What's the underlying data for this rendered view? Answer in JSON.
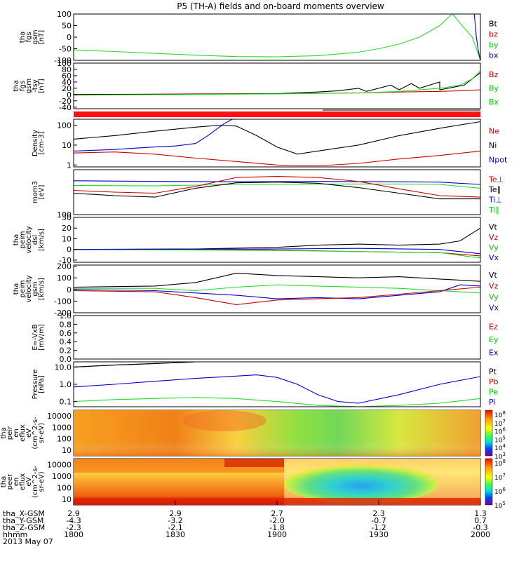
{
  "title": "P5 (TH-A) fields and on-board moments overview",
  "chart_data": [
    {
      "id": "panel1",
      "type": "line",
      "ylabel": [
        "tha",
        "fgs",
        "gsm",
        "[nT]"
      ],
      "ylim": [
        -100,
        100
      ],
      "ticks": [
        "100",
        "50",
        "0",
        "-50",
        "-100"
      ],
      "tickvals": [
        100,
        50,
        0,
        -50,
        -100
      ],
      "legend": [
        {
          "name": "Bt",
          "color": "#000000"
        },
        {
          "name": "bz",
          "color": "#cc0000"
        },
        {
          "name": "by",
          "color": "#00cc00"
        },
        {
          "name": "bx",
          "color": "#0000cc"
        }
      ],
      "series": [
        {
          "name": "by",
          "color": "#22dd22",
          "x": [
            0,
            0.1,
            0.2,
            0.3,
            0.4,
            0.5,
            0.6,
            0.7,
            0.75,
            0.8,
            0.85,
            0.9,
            0.93
          ],
          "y": [
            -55,
            -62,
            -70,
            -78,
            -84,
            -85,
            -80,
            -65,
            -50,
            -30,
            0,
            50,
            100
          ]
        },
        {
          "name": "by",
          "color": "#22dd22",
          "x": [
            0.932,
            0.95,
            0.98,
            1.0
          ],
          "y": [
            100,
            60,
            0,
            -100
          ]
        },
        {
          "name": "bx",
          "color": "#0000cc",
          "x": [
            0.985,
            0.99,
            0.995,
            1.0
          ],
          "y": [
            100,
            0,
            -60,
            -100
          ]
        }
      ]
    },
    {
      "id": "panel2",
      "type": "line",
      "ylabel": [
        "tha",
        "fgs",
        "gsm",
        "-tsy",
        "[nT]"
      ],
      "ylim": [
        -45,
        100
      ],
      "ticks": [
        "100",
        "80",
        "60",
        "40",
        "20",
        "0",
        "-20",
        "-40"
      ],
      "tickvals": [
        100,
        80,
        60,
        40,
        20,
        0,
        -20,
        -40
      ],
      "legend": [
        {
          "name": "Bz",
          "color": "#cc0000"
        },
        {
          "name": "By",
          "color": "#00cc00"
        },
        {
          "name": "Bx",
          "color": "#00cc00"
        }
      ],
      "series": [
        {
          "name": "Bz",
          "color": "#cc0000",
          "x": [
            0,
            0.3,
            0.5,
            0.7,
            0.8,
            0.9,
            0.95,
            1.0
          ],
          "y": [
            0,
            2,
            3,
            5,
            8,
            10,
            12,
            15
          ]
        },
        {
          "name": "Bt",
          "color": "#000000",
          "x": [
            0,
            0.3,
            0.5,
            0.6,
            0.65,
            0.7,
            0.72,
            0.78,
            0.8,
            0.83,
            0.85,
            0.9,
            0.9,
            0.92,
            0.96,
            0.98,
            1.0
          ],
          "y": [
            0,
            1,
            3,
            8,
            12,
            20,
            10,
            30,
            15,
            35,
            20,
            40,
            15,
            20,
            30,
            50,
            70
          ]
        },
        {
          "name": "By",
          "color": "#22dd22",
          "x": [
            0,
            0.5,
            0.7,
            0.8,
            0.9,
            0.95,
            0.98,
            1.0
          ],
          "y": [
            -2,
            2,
            5,
            10,
            20,
            30,
            50,
            75
          ]
        }
      ]
    },
    {
      "id": "panel4",
      "type": "line",
      "ylabel": [
        "Density",
        "[cm-3]"
      ],
      "ylim": [
        0.8,
        200
      ],
      "log": true,
      "ticks": [
        "100",
        "10",
        "1"
      ],
      "tickvals": [
        100,
        10,
        1
      ],
      "legend": [
        {
          "name": "Ne",
          "color": "#cc0000"
        },
        {
          "name": "Ni",
          "color": "#000000"
        },
        {
          "name": "Npot",
          "color": "#0000cc"
        }
      ],
      "series": [
        {
          "name": "Ni",
          "color": "#000000",
          "x": [
            0,
            0.1,
            0.2,
            0.3,
            0.36,
            0.4,
            0.45,
            0.5,
            0.55,
            0.6,
            0.7,
            0.8,
            0.9,
            1.0
          ],
          "y": [
            20,
            30,
            50,
            80,
            100,
            90,
            30,
            8,
            3.5,
            5,
            10,
            30,
            70,
            150
          ]
        },
        {
          "name": "Npot",
          "color": "#0000cc",
          "x": [
            0,
            0.05,
            0.1,
            0.15,
            0.2,
            0.25,
            0.3,
            0.33,
            0.35,
            0.37,
            0.39
          ],
          "y": [
            5,
            5.5,
            6,
            7,
            8,
            9,
            12,
            30,
            60,
            120,
            200
          ]
        },
        {
          "name": "Ne",
          "color": "#cc0000",
          "x": [
            0,
            0.1,
            0.2,
            0.3,
            0.4,
            0.5,
            0.55,
            0.6,
            0.7,
            0.8,
            0.9,
            1.0
          ],
          "y": [
            4,
            4.5,
            3.5,
            2.2,
            1.5,
            1.0,
            0.9,
            0.9,
            1.2,
            2,
            3,
            5
          ]
        }
      ]
    },
    {
      "id": "panel5",
      "type": "line",
      "ylabel": [
        "mom3",
        "[eV]"
      ],
      "ylim": [
        100,
        10000
      ],
      "log": true,
      "ticks": [
        "100"
      ],
      "tickvals": [
        100
      ],
      "legend": [
        {
          "name": "Te⊥",
          "color": "#cc0000"
        },
        {
          "name": "Te∥",
          "color": "#000000"
        },
        {
          "name": "Ti⊥",
          "color": "#0000cc"
        },
        {
          "name": "Ti∥",
          "color": "#00cc00"
        }
      ],
      "series": [
        {
          "name": "Ti⊥",
          "color": "#0000cc",
          "x": [
            0,
            0.2,
            0.4,
            0.6,
            0.8,
            0.9,
            1.0
          ],
          "y": [
            3200,
            3000,
            2900,
            3000,
            2900,
            2800,
            2200
          ]
        },
        {
          "name": "Ti∥",
          "color": "#22dd22",
          "x": [
            0,
            0.2,
            0.4,
            0.6,
            0.8,
            0.9,
            1.0
          ],
          "y": [
            2000,
            1900,
            2200,
            2300,
            2300,
            2200,
            1500
          ]
        },
        {
          "name": "Te⊥",
          "color": "#cc0000",
          "x": [
            0,
            0.1,
            0.2,
            0.3,
            0.4,
            0.5,
            0.6,
            0.7,
            0.8,
            0.9,
            1.0
          ],
          "y": [
            1200,
            1000,
            900,
            1800,
            4500,
            5000,
            4500,
            3000,
            1400,
            700,
            600
          ]
        },
        {
          "name": "Te∥",
          "color": "#000000",
          "x": [
            0,
            0.1,
            0.2,
            0.3,
            0.4,
            0.5,
            0.6,
            0.7,
            0.8,
            0.9,
            1.0
          ],
          "y": [
            900,
            700,
            600,
            1500,
            2600,
            2800,
            2500,
            1600,
            900,
            500,
            500
          ]
        }
      ]
    },
    {
      "id": "panel6",
      "type": "line",
      "ylabel": [
        "tha",
        "peim",
        "velocity",
        "dsl",
        "[km/s]"
      ],
      "ylim": [
        -12,
        30
      ],
      "ticks": [
        "30",
        "20",
        "10",
        "0",
        "-10"
      ],
      "tickvals": [
        30,
        20,
        10,
        0,
        -10
      ],
      "legend": [
        {
          "name": "Vt",
          "color": "#000000"
        },
        {
          "name": "Vz",
          "color": "#cc0000"
        },
        {
          "name": "Vy",
          "color": "#00cc00"
        },
        {
          "name": "Vx",
          "color": "#0000cc"
        }
      ],
      "series": [
        {
          "name": "Vt",
          "color": "#000000",
          "x": [
            0,
            0.3,
            0.5,
            0.6,
            0.7,
            0.8,
            0.9,
            0.95,
            1.0
          ],
          "y": [
            0,
            0.5,
            2,
            4,
            5,
            4,
            5,
            8,
            20
          ]
        },
        {
          "name": "Vz",
          "color": "#cc0000",
          "x": [
            0,
            0.5,
            0.7,
            0.9,
            1.0
          ],
          "y": [
            0,
            -0.5,
            -2,
            -3,
            -6
          ]
        },
        {
          "name": "Vy",
          "color": "#22dd22",
          "x": [
            0,
            0.5,
            0.7,
            0.9,
            1.0
          ],
          "y": [
            0,
            -1,
            -2,
            -3,
            -8
          ]
        },
        {
          "name": "Vx",
          "color": "#0000cc",
          "x": [
            0,
            0.5,
            0.7,
            0.9,
            1.0
          ],
          "y": [
            0,
            0.5,
            1,
            0,
            -4
          ]
        }
      ]
    },
    {
      "id": "panel7",
      "type": "line",
      "ylabel": [
        "tha",
        "peim",
        "velocity",
        "gsm",
        "[km/s]"
      ],
      "ylim": [
        -200,
        210
      ],
      "ticks": [
        "200",
        "100",
        "0",
        "-100",
        "-200"
      ],
      "tickvals": [
        200,
        100,
        0,
        -100,
        -200
      ],
      "legend": [
        {
          "name": "Vt",
          "color": "#000000"
        },
        {
          "name": "Vz",
          "color": "#cc0000"
        },
        {
          "name": "Vy",
          "color": "#00cc00"
        },
        {
          "name": "Vx",
          "color": "#0000cc"
        }
      ],
      "series": [
        {
          "name": "Vt",
          "color": "#000000",
          "x": [
            0,
            0.2,
            0.3,
            0.4,
            0.5,
            0.6,
            0.7,
            0.8,
            0.9,
            1.0
          ],
          "y": [
            20,
            30,
            60,
            140,
            120,
            110,
            100,
            110,
            90,
            70
          ]
        },
        {
          "name": "Vy",
          "color": "#22dd22",
          "x": [
            0,
            0.2,
            0.3,
            0.4,
            0.5,
            0.6,
            0.7,
            0.8,
            0.9,
            1.0
          ],
          "y": [
            10,
            10,
            -10,
            20,
            40,
            30,
            20,
            10,
            -10,
            -30
          ]
        },
        {
          "name": "Vx",
          "color": "#0000cc",
          "x": [
            0,
            0.2,
            0.3,
            0.4,
            0.5,
            0.6,
            0.7,
            0.8,
            0.9,
            0.95,
            1.0
          ],
          "y": [
            0,
            -10,
            -30,
            -50,
            -80,
            -70,
            -80,
            -50,
            -20,
            40,
            30
          ]
        },
        {
          "name": "Vz",
          "color": "#cc0000",
          "x": [
            0,
            0.2,
            0.3,
            0.4,
            0.5,
            0.6,
            0.7,
            0.8,
            0.9,
            1.0
          ],
          "y": [
            -10,
            -20,
            -70,
            -130,
            -90,
            -80,
            -70,
            -40,
            -10,
            20
          ]
        }
      ]
    },
    {
      "id": "panel8",
      "type": "line",
      "ylabel": [
        "E=-VxB",
        "[mV/m]"
      ],
      "ylim": [
        0,
        1
      ],
      "ticks": [
        "1.0",
        "0.8",
        "0.6",
        "0.4",
        "0.2",
        "0.0"
      ],
      "tickvals": [
        1,
        0.8,
        0.6,
        0.4,
        0.2,
        0
      ],
      "legend": [
        {
          "name": "Ez",
          "color": "#cc0000"
        },
        {
          "name": "Ey",
          "color": "#00cc00"
        },
        {
          "name": "Ex",
          "color": "#0000cc"
        }
      ],
      "series": []
    },
    {
      "id": "panel9",
      "type": "line",
      "ylabel": [
        "Pressure",
        "[nPa]"
      ],
      "ylim": [
        0.05,
        20
      ],
      "log": true,
      "ticks": [
        "10.0",
        "1.0",
        "0.1"
      ],
      "tickvals": [
        10,
        1,
        0.1
      ],
      "legend": [
        {
          "name": "Pt",
          "color": "#000000"
        },
        {
          "name": "Pb",
          "color": "#cc0000"
        },
        {
          "name": "Pe",
          "color": "#00cc00"
        },
        {
          "name": "Pi",
          "color": "#0000cc"
        }
      ],
      "series": [
        {
          "name": "Pb",
          "color": "#cc0000",
          "x": [
            0,
            0.1,
            0.2,
            0.3
          ],
          "y": [
            10,
            13,
            16,
            20
          ]
        },
        {
          "name": "Pt",
          "color": "#000000",
          "x": [
            0,
            0.1,
            0.2,
            0.3
          ],
          "y": [
            10,
            13,
            16,
            20
          ]
        },
        {
          "name": "Pi",
          "color": "#0000cc",
          "x": [
            0,
            0.1,
            0.2,
            0.3,
            0.4,
            0.45,
            0.5,
            0.55,
            0.6,
            0.65,
            0.7,
            0.8,
            0.9,
            1.0
          ],
          "y": [
            0.7,
            1.0,
            1.5,
            2.2,
            3.0,
            3.5,
            2.5,
            1.0,
            0.25,
            0.1,
            0.08,
            0.25,
            1.0,
            2.8
          ]
        },
        {
          "name": "Pe",
          "color": "#22dd22",
          "x": [
            0,
            0.1,
            0.2,
            0.3,
            0.4,
            0.5,
            0.6,
            0.7,
            0.8,
            0.9,
            1.0
          ],
          "y": [
            0.1,
            0.13,
            0.15,
            0.17,
            0.15,
            0.1,
            0.06,
            0.05,
            0.06,
            0.08,
            0.15
          ]
        }
      ]
    },
    {
      "id": "panel10",
      "type": "heatmap",
      "ylabel": [
        "tha",
        "peir",
        "en",
        "eflux",
        "eV",
        "(cm^2-s-",
        "sr-eV)"
      ],
      "ticks": [
        "10000",
        "1000",
        "100",
        "10"
      ],
      "colorbar": [
        "10^8",
        "10^7",
        "10^6",
        "10^5",
        "10^4",
        "10^3"
      ]
    },
    {
      "id": "panel11",
      "type": "heatmap",
      "ylabel": [
        "tha",
        "peer",
        "en",
        "eflux",
        "eV",
        "(cm^2-s-",
        "sr-eV)"
      ],
      "ticks": [
        "10000",
        "1000",
        "100",
        "10"
      ],
      "colorbar": [
        "10^8",
        "10^7",
        "10^6",
        "10^5"
      ]
    }
  ],
  "axis": {
    "rows": [
      {
        "label": "tha_X-GSM",
        "values": [
          "2.9",
          "2.9",
          "2.7",
          "2.3",
          "1.3"
        ]
      },
      {
        "label": "tha_Y-GSM",
        "values": [
          "-4.3",
          "-3.2",
          "-2.0",
          "-0.7",
          "0.7"
        ]
      },
      {
        "label": "tha_Z-GSM",
        "values": [
          "-2.3",
          "-2.1",
          "-1.8",
          "-1.2",
          "-0.3"
        ]
      },
      {
        "label": "hhmm",
        "values": [
          "1800",
          "1830",
          "1900",
          "1930",
          "2000"
        ]
      }
    ],
    "date": "2013 May 07"
  },
  "colors": {
    "black": "#000000",
    "red": "#cc0000",
    "green": "#22dd22",
    "blue": "#0000cc"
  }
}
